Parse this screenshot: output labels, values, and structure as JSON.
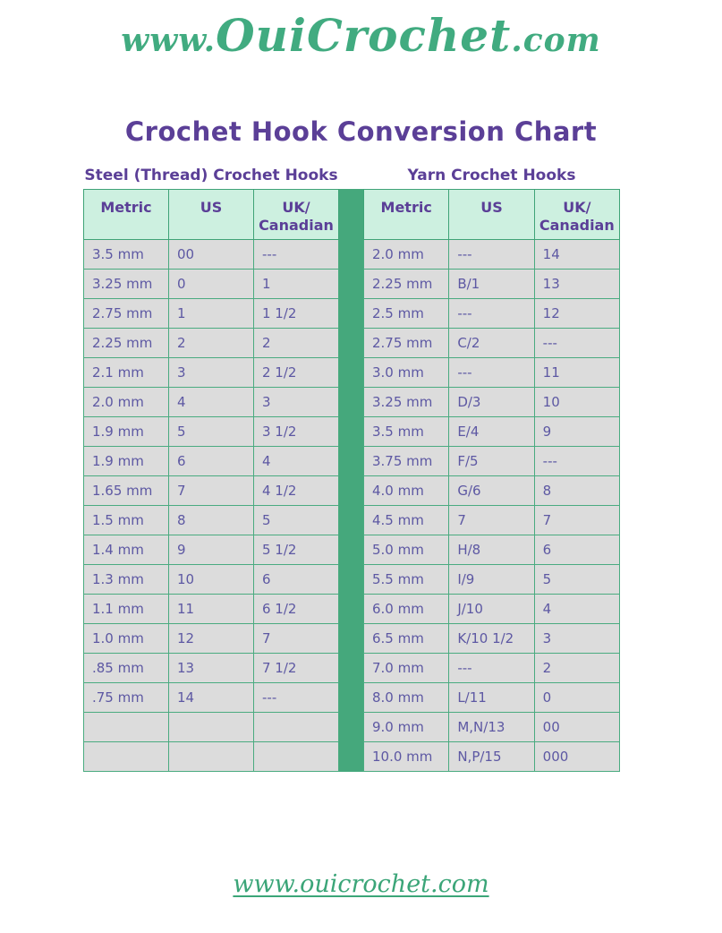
{
  "page": {
    "logo": {
      "prefix": "www.",
      "brand": "OuiCrochet",
      "suffix": ".com",
      "full_text": "www.OuiCrochet.com"
    },
    "title": "Crochet Hook Conversion Chart",
    "footer_link": "www.ouicrochet.com"
  },
  "colors": {
    "logo_green": "#41ab80",
    "title_purple": "#5b3f97",
    "header_mint": "#cdf0e0",
    "cell_gray": "#dcdcdc",
    "cell_text_purple": "#5d58a3",
    "border_green": "#45a87c",
    "footer_green": "#3ba578"
  },
  "tables": [
    {
      "id": "steel",
      "title": "Steel (Thread) Crochet Hooks",
      "columns": [
        "Metric",
        "US",
        "UK/\nCanadian"
      ],
      "rows": [
        [
          "3.5 mm",
          "00",
          "---"
        ],
        [
          "3.25 mm",
          "0",
          "1"
        ],
        [
          "2.75 mm",
          "1",
          "1 1/2"
        ],
        [
          "2.25 mm",
          "2",
          "2"
        ],
        [
          "2.1 mm",
          "3",
          "2 1/2"
        ],
        [
          "2.0 mm",
          "4",
          "3"
        ],
        [
          "1.9 mm",
          "5",
          "3 1/2"
        ],
        [
          "1.9 mm",
          "6",
          "4"
        ],
        [
          "1.65 mm",
          "7",
          "4 1/2"
        ],
        [
          "1.5 mm",
          "8",
          "5"
        ],
        [
          "1.4 mm",
          "9",
          "5 1/2"
        ],
        [
          "1.3 mm",
          "10",
          "6"
        ],
        [
          "1.1 mm",
          "11",
          "6 1/2"
        ],
        [
          "1.0 mm",
          "12",
          "7"
        ],
        [
          ".85 mm",
          "13",
          "7 1/2"
        ],
        [
          ".75 mm",
          "14",
          "---"
        ],
        [
          "",
          "",
          ""
        ],
        [
          "",
          "",
          ""
        ]
      ]
    },
    {
      "id": "yarn",
      "title": "Yarn Crochet Hooks",
      "columns": [
        "Metric",
        "US",
        "UK/\nCanadian"
      ],
      "rows": [
        [
          "2.0 mm",
          "---",
          "14"
        ],
        [
          "2.25 mm",
          "B/1",
          "13"
        ],
        [
          "2.5 mm",
          "---",
          "12"
        ],
        [
          "2.75 mm",
          "C/2",
          "---"
        ],
        [
          "3.0 mm",
          "---",
          "11"
        ],
        [
          "3.25 mm",
          "D/3",
          "10"
        ],
        [
          "3.5 mm",
          "E/4",
          "9"
        ],
        [
          "3.75 mm",
          "F/5",
          "---"
        ],
        [
          "4.0 mm",
          "G/6",
          "8"
        ],
        [
          "4.5 mm",
          "7",
          "7"
        ],
        [
          "5.0 mm",
          "H/8",
          "6"
        ],
        [
          "5.5 mm",
          "I/9",
          "5"
        ],
        [
          "6.0 mm",
          "J/10",
          "4"
        ],
        [
          "6.5 mm",
          "K/10 1/2",
          "3"
        ],
        [
          "7.0 mm",
          "---",
          "2"
        ],
        [
          "8.0 mm",
          "L/11",
          "0"
        ],
        [
          "9.0 mm",
          "M,N/13",
          "00"
        ],
        [
          "10.0 mm",
          "N,P/15",
          "000"
        ]
      ]
    }
  ]
}
